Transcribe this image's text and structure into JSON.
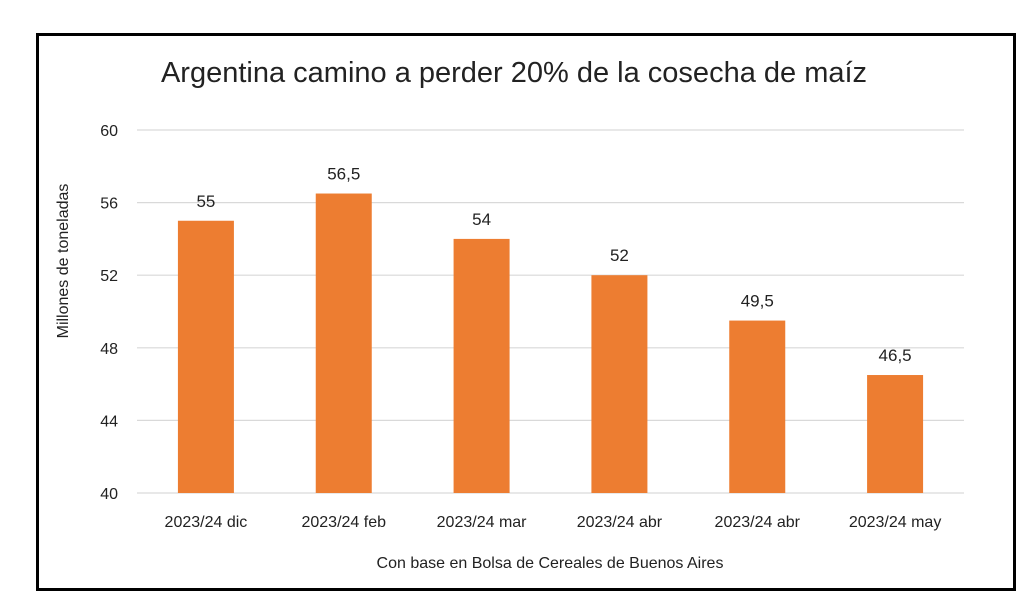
{
  "chart_data": {
    "type": "bar",
    "title": "Argentina camino a perder 20% de la cosecha de maíz",
    "ylabel": "Millones de toneladas",
    "xlabel": "Con base en Bolsa de Cereales de Buenos Aires",
    "categories": [
      "2023/24 dic",
      "2023/24 feb",
      "2023/24 mar",
      "2023/24 abr",
      "2023/24 abr",
      "2023/24 may"
    ],
    "values": [
      55,
      56.5,
      54,
      52,
      49.5,
      46.5
    ],
    "value_labels": [
      "55",
      "56,5",
      "54",
      "52",
      "49,5",
      "46,5"
    ],
    "ylim": [
      40,
      60
    ],
    "yticks": [
      40,
      44,
      48,
      52,
      56,
      60
    ],
    "grid": true,
    "legend": "none",
    "colors": {
      "bar": "#ED7D31",
      "grid": "#D9D9D9",
      "frame": "#000000"
    }
  }
}
